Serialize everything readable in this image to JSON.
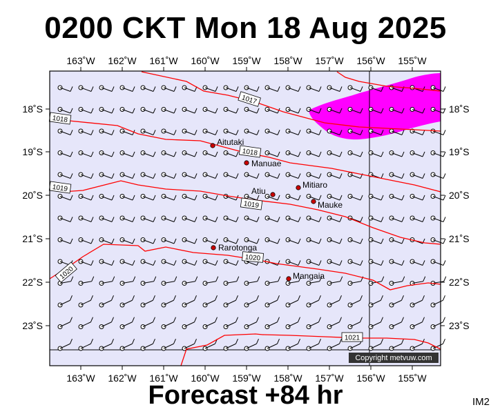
{
  "title": "0200 CKT Mon 18 Aug 2025",
  "footer": "Forecast +84 hr",
  "code": "IM2",
  "copyright": "Copyright metvuw.com",
  "map": {
    "lon_ticks_top": [
      "163˚W",
      "162˚W",
      "161˚W",
      "160˚W",
      "159˚W",
      "158˚W",
      "157˚W",
      "156˚W",
      "155˚W"
    ],
    "lon_ticks_bottom": [
      "163˚W",
      "162˚W",
      "161˚W",
      "160˚W",
      "159˚W",
      "158˚W",
      "157˚W",
      "156˚W",
      "155˚W"
    ],
    "lat_ticks_left": [
      "18˚S",
      "19˚S",
      "20˚S",
      "21˚S",
      "22˚S",
      "23˚S"
    ],
    "lat_ticks_right": [
      "18˚S",
      "19˚S",
      "20˚S",
      "21˚S",
      "22˚S",
      "23˚S"
    ],
    "places": [
      {
        "name": "Aitutaki",
        "label": "Aitutaki"
      },
      {
        "name": "Manuae",
        "label": "Manuae"
      },
      {
        "name": "Mitiaro",
        "label": "Mitiaro"
      },
      {
        "name": "Atiu",
        "label": "Atiu"
      },
      {
        "name": "Mauke",
        "label": "Mauke"
      },
      {
        "name": "Rarotonga",
        "label": "Rarotonga"
      },
      {
        "name": "Mangaia",
        "label": "Mangaia"
      }
    ],
    "isobar_labels": [
      "1017",
      "1018",
      "1018",
      "1019",
      "1019",
      "1020",
      "1020",
      "1021"
    ],
    "colors": {
      "ocean": "#e6e6fa",
      "isobar": "#ff0000",
      "rain": "#ff00ff",
      "island": "#cc0000"
    }
  }
}
